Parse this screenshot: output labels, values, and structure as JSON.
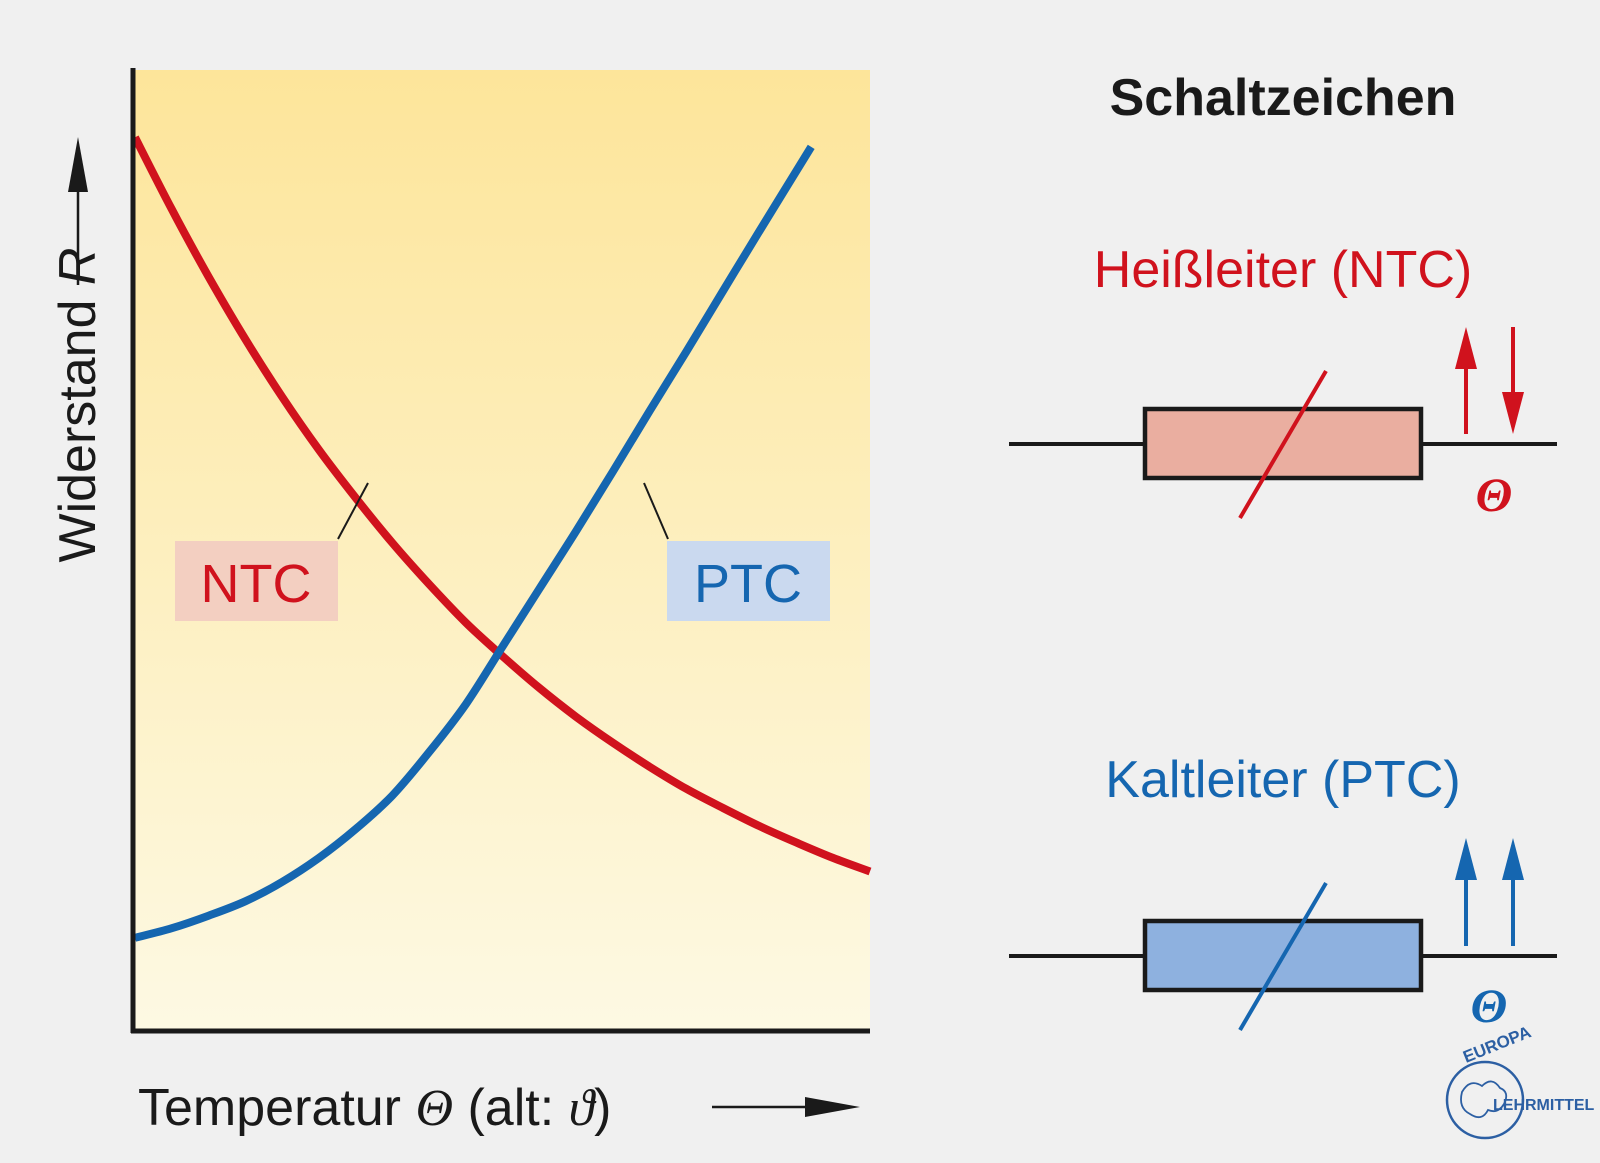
{
  "chart": {
    "ylabel_prefix": "Widerstand ",
    "ylabel_var": "R",
    "xlabel_prefix": "Temperatur ",
    "xlabel_var": "Θ",
    "xlabel_alt_open": " (alt: ",
    "xlabel_alt_var": "ϑ",
    "xlabel_alt_close": ")",
    "label_ntc": "NTC",
    "label_ptc": "PTC"
  },
  "symbols": {
    "heading": "Schaltzeichen",
    "ntc_title": "Heißleiter (NTC)",
    "ptc_title": "Kaltleiter (PTC)",
    "theta": "Θ"
  },
  "logo": {
    "top": "EUROPA",
    "right": "LEHRMITTEL"
  },
  "colors": {
    "ntc": "#d0121d",
    "ptc": "#1566b0",
    "ntc_fill": "#eaaea0",
    "ptc_fill": "#8eb1df",
    "plot_bg_top": "#fde59a",
    "plot_bg_bottom": "#fdf9e3"
  },
  "chart_data": {
    "type": "line",
    "xlabel": "Temperatur Θ (alt: ϑ)",
    "ylabel": "Widerstand R",
    "x_ticks": false,
    "y_ticks": false,
    "grid": false,
    "series": [
      {
        "name": "NTC",
        "color": "#d0121d",
        "x": [
          0.0,
          0.05,
          0.1,
          0.15,
          0.2,
          0.25,
          0.3,
          0.35,
          0.4,
          0.45,
          0.5,
          0.55,
          0.6,
          0.65,
          0.7,
          0.75,
          0.8,
          0.85,
          0.9,
          0.95,
          1.0
        ],
        "y": [
          0.93,
          0.855,
          0.785,
          0.72,
          0.66,
          0.605,
          0.555,
          0.508,
          0.465,
          0.425,
          0.39,
          0.357,
          0.327,
          0.3,
          0.275,
          0.252,
          0.232,
          0.213,
          0.196,
          0.18,
          0.166
        ]
      },
      {
        "name": "PTC",
        "color": "#1566b0",
        "x": [
          0.0,
          0.05,
          0.1,
          0.15,
          0.2,
          0.25,
          0.3,
          0.35,
          0.4,
          0.45,
          0.5,
          0.55,
          0.6,
          0.65,
          0.7,
          0.75,
          0.8,
          0.85,
          0.92
        ],
        "y": [
          0.097,
          0.107,
          0.12,
          0.135,
          0.155,
          0.18,
          0.21,
          0.245,
          0.29,
          0.34,
          0.4,
          0.46,
          0.52,
          0.582,
          0.645,
          0.707,
          0.77,
          0.833,
          0.92
        ]
      }
    ],
    "xlim": [
      0,
      1
    ],
    "ylim": [
      0,
      1
    ]
  }
}
